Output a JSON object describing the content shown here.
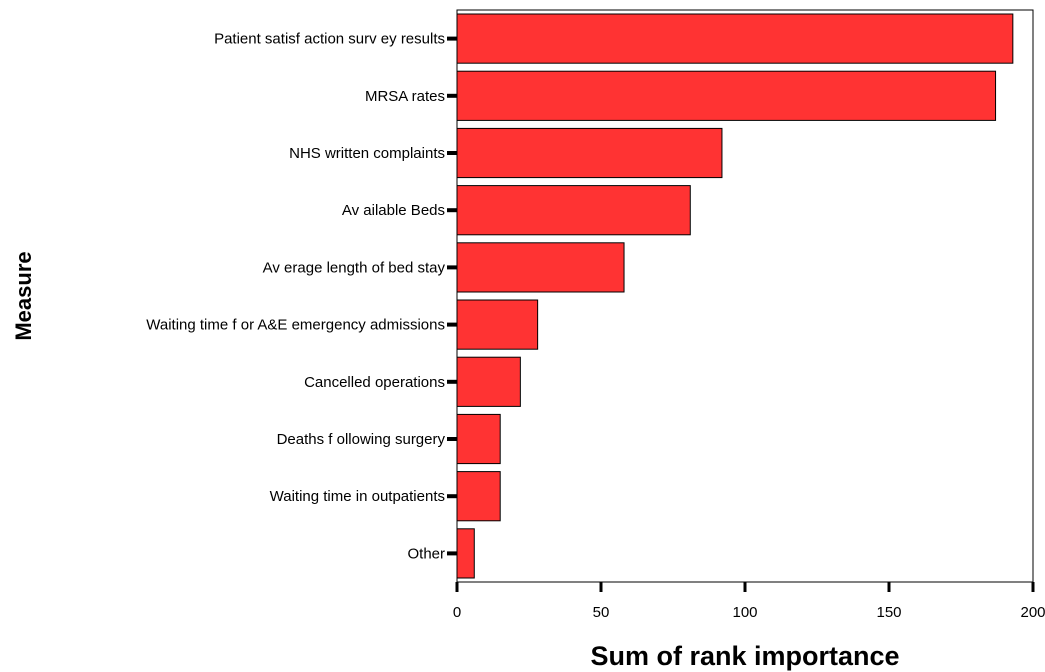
{
  "chart_data": {
    "type": "bar",
    "orientation": "horizontal",
    "categories": [
      "Patient satisf action surv ey results",
      "MRSA rates",
      "NHS written complaints",
      "Av ailable Beds",
      "Av erage length of bed stay",
      "Waiting time f or A&E emergency admissions",
      "Cancelled operations",
      "Deaths f ollowing surgery",
      "Waiting time in outpatients",
      "Other"
    ],
    "values": [
      193,
      187,
      92,
      81,
      58,
      28,
      22,
      15,
      15,
      6
    ],
    "xlabel": "Sum of rank importance",
    "ylabel": "Measure",
    "xlim": [
      0,
      200
    ],
    "xticks": [
      0,
      50,
      100,
      150,
      200
    ],
    "xtick_labels": [
      "0",
      "50",
      "100",
      "150",
      "200"
    ],
    "grid": false,
    "colors": {
      "bar_fill": "#ff3333",
      "bar_stroke": "#000000",
      "axis": "#000000"
    }
  }
}
